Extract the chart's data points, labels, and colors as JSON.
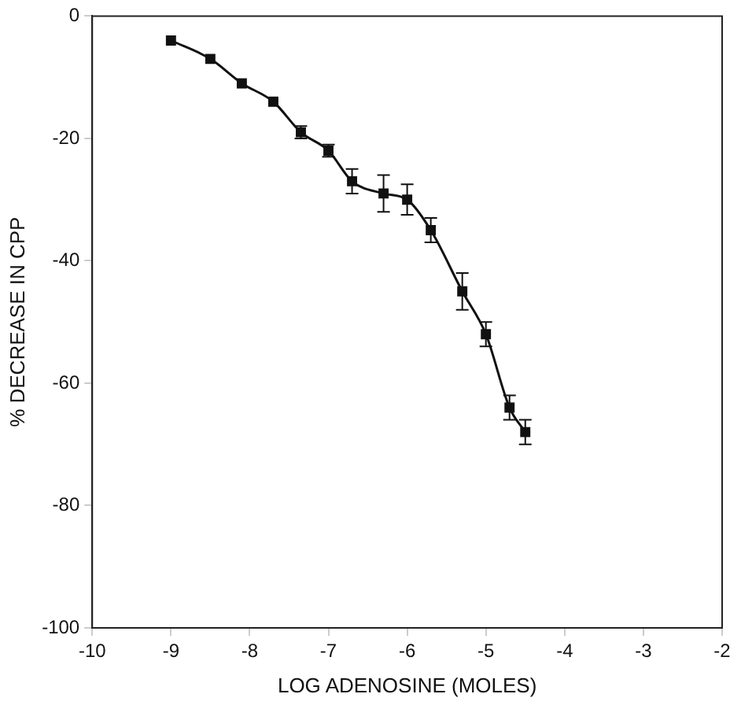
{
  "chart_data": {
    "type": "line",
    "xlabel": "LOG ADENOSINE (MOLES)",
    "ylabel": "% DECREASE IN CPP",
    "x": [
      -9,
      -8.5,
      -8.1,
      -7.7,
      -7.35,
      -7,
      -6.7,
      -6.3,
      -6,
      -5.7,
      -5.3,
      -5,
      -4.7,
      -4.5
    ],
    "series": [
      {
        "color": "#111111",
        "values": [
          -4,
          -7,
          -11,
          -14,
          -19,
          -22,
          -27,
          -29,
          -30,
          -35,
          -45,
          -52,
          -64,
          -68
        ],
        "errors": [
          null,
          null,
          null,
          null,
          1,
          1,
          2,
          3,
          2.5,
          2,
          3,
          2,
          2,
          2
        ]
      }
    ],
    "xlim": [
      -10,
      -2
    ],
    "xticks": [
      -10,
      -9,
      -8,
      -7,
      -6,
      -5,
      -4,
      -3,
      -2
    ],
    "ylim": [
      -100,
      0
    ],
    "yticks": [
      -100,
      -80,
      -60,
      -40,
      -20,
      0
    ],
    "grid": false,
    "legend": false,
    "marker": "square",
    "line_style": "solid"
  }
}
